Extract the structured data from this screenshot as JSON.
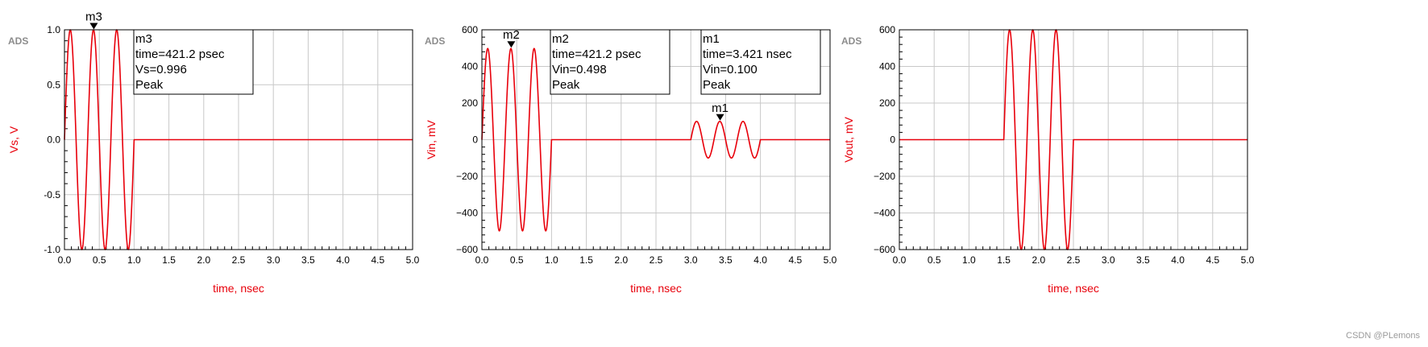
{
  "colors": {
    "series": "#e8000b",
    "axis_label": "#e8000b",
    "grid": "#c8c8c8",
    "frame": "#000000",
    "tool_tag": "#8c8c8c"
  },
  "tool_tag": "ADS",
  "watermark": "CSDN @PLemons",
  "chart_data": [
    {
      "type": "line",
      "xlabel": "time, nsec",
      "ylabel": "Vs, V",
      "xlim": [
        0,
        5
      ],
      "ylim": [
        -1.0,
        1.0
      ],
      "xticks": [
        "0.0",
        "0.5",
        "1.0",
        "1.5",
        "2.0",
        "2.5",
        "3.0",
        "3.5",
        "4.0",
        "4.5",
        "5.0"
      ],
      "yticks": [
        "1.0",
        "0.5",
        "0.0",
        "-0.5",
        "-1.0"
      ],
      "ytick_values": [
        1.0,
        0.5,
        0.0,
        -0.5,
        -1.0
      ],
      "grid": true,
      "series": [
        {
          "bursts": [
            {
              "start": 0,
              "end": 1.0,
              "amplitude": 1.0,
              "frequency_ghz": 3.0
            }
          ]
        }
      ],
      "markers": [
        {
          "label": "m3",
          "x": 0.4212,
          "y": 0.996,
          "label_pos": "above",
          "box": [
            "m3",
            "time=421.2 psec",
            "Vs=0.996",
            "Peak"
          ]
        }
      ]
    },
    {
      "type": "line",
      "xlabel": "time, nsec",
      "ylabel": "Vin, mV",
      "xlim": [
        0,
        5
      ],
      "ylim": [
        -600,
        600
      ],
      "xticks": [
        "0.0",
        "0.5",
        "1.0",
        "1.5",
        "2.0",
        "2.5",
        "3.0",
        "3.5",
        "4.0",
        "4.5",
        "5.0"
      ],
      "yticks": [
        "600",
        "400",
        "200",
        "0",
        "−200",
        "−400",
        "−600"
      ],
      "ytick_values": [
        600,
        400,
        200,
        0,
        -200,
        -400,
        -600
      ],
      "grid": true,
      "series": [
        {
          "bursts": [
            {
              "start": 0,
              "end": 1.0,
              "amplitude": 498,
              "frequency_ghz": 3.0
            },
            {
              "start": 3.0,
              "end": 4.0,
              "amplitude": 100,
              "frequency_ghz": 3.0
            }
          ]
        }
      ],
      "markers": [
        {
          "label": "m2",
          "x": 0.4212,
          "y": 498,
          "label_pos": "above",
          "box": [
            "m2",
            "time=421.2 psec",
            "Vin=0.498",
            "Peak"
          ]
        },
        {
          "label": "m1",
          "x": 3.421,
          "y": 100,
          "label_pos": "above",
          "box": [
            "m1",
            "time=3.421 nsec",
            "Vin=0.100",
            "Peak"
          ]
        }
      ]
    },
    {
      "type": "line",
      "xlabel": "time, nsec",
      "ylabel": "Vout, mV",
      "xlim": [
        0,
        5
      ],
      "ylim": [
        -600,
        600
      ],
      "xticks": [
        "0.0",
        "0.5",
        "1.0",
        "1.5",
        "2.0",
        "2.5",
        "3.0",
        "3.5",
        "4.0",
        "4.5",
        "5.0"
      ],
      "yticks": [
        "600",
        "400",
        "200",
        "0",
        "−200",
        "−400",
        "−600"
      ],
      "ytick_values": [
        600,
        400,
        200,
        0,
        -200,
        -400,
        -600
      ],
      "grid": true,
      "series": [
        {
          "bursts": [
            {
              "start": 1.5,
              "end": 2.5,
              "amplitude": 600,
              "frequency_ghz": 3.0
            }
          ]
        }
      ],
      "markers": []
    }
  ]
}
